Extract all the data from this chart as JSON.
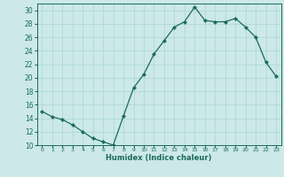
{
  "x": [
    0,
    1,
    2,
    3,
    4,
    5,
    6,
    7,
    8,
    9,
    10,
    11,
    12,
    13,
    14,
    15,
    16,
    17,
    18,
    19,
    20,
    21,
    22,
    23
  ],
  "y": [
    15,
    14.2,
    13.8,
    13,
    12,
    11,
    10.5,
    10,
    14.3,
    18.5,
    20.5,
    23.5,
    25.5,
    27.5,
    28.3,
    30.5,
    28.5,
    28.3,
    28.3,
    28.8,
    27.5,
    26.0,
    22.3,
    20.2
  ],
  "line_color": "#1a6b5a",
  "marker": "D",
  "marker_size": 2.2,
  "bg_color": "#cce8e8",
  "grid_color": "#aad4d4",
  "xlabel": "Humidex (Indice chaleur)",
  "ylim": [
    10,
    31
  ],
  "xlim": [
    -0.5,
    23.5
  ],
  "yticks": [
    10,
    12,
    14,
    16,
    18,
    20,
    22,
    24,
    26,
    28,
    30
  ],
  "xticks": [
    0,
    1,
    2,
    3,
    4,
    5,
    6,
    7,
    8,
    9,
    10,
    11,
    12,
    13,
    14,
    15,
    16,
    17,
    18,
    19,
    20,
    21,
    22,
    23
  ],
  "xtick_labels": [
    "0",
    "1",
    "2",
    "3",
    "4",
    "5",
    "6",
    "7",
    "8",
    "9",
    "10",
    "11",
    "12",
    "13",
    "14",
    "15",
    "16",
    "17",
    "18",
    "19",
    "20",
    "21",
    "22",
    "23"
  ]
}
